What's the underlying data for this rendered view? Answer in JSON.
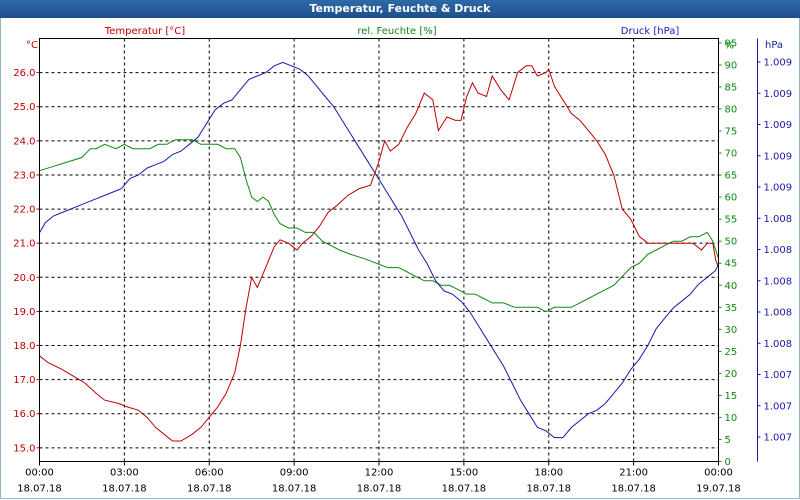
{
  "window": {
    "title": "Temperatur, Feuchte & Druck"
  },
  "chart_data": {
    "type": "line",
    "title": "Temperatur, Feuchte & Druck",
    "x": {
      "ticks": [
        {
          "time": "00:00",
          "date": "18.07.18"
        },
        {
          "time": "03:00",
          "date": "18.07.18"
        },
        {
          "time": "06:00",
          "date": "18.07.18"
        },
        {
          "time": "09:00",
          "date": "18.07.18"
        },
        {
          "time": "12:00",
          "date": "18.07.18"
        },
        {
          "time": "15:00",
          "date": "18.07.18"
        },
        {
          "time": "18:00",
          "date": "18.07.18"
        },
        {
          "time": "21:00",
          "date": "18.07.18"
        },
        {
          "time": "00:00",
          "date": "19.07.18"
        }
      ],
      "range_hours": [
        0,
        24
      ]
    },
    "axes": {
      "temperature": {
        "label": "Temperatur [°C]",
        "unit": "°C",
        "color": "#c00000",
        "range": [
          14.6,
          27.0
        ],
        "ticks": [
          "15.0",
          "16.0",
          "17.0",
          "18.0",
          "19.0",
          "20.0",
          "21.0",
          "22.0",
          "23.0",
          "24.0",
          "25.0",
          "26.0"
        ]
      },
      "humidity": {
        "label": "rel. Feuchte [%]",
        "unit": "%",
        "color": "#118811",
        "range": [
          0,
          96
        ],
        "ticks": [
          "0",
          "5",
          "10",
          "15",
          "20",
          "25",
          "30",
          "35",
          "40",
          "45",
          "50",
          "55",
          "60",
          "65",
          "70",
          "75",
          "80",
          "85",
          "90",
          "95",
          "%"
        ]
      },
      "pressure": {
        "label": "Druck [hPa]",
        "unit": "hPa",
        "color": "#1a1aaa",
        "ticks": [
          "1.007",
          "1.007",
          "1.007",
          "1.008",
          "1.008",
          "1.008",
          "1.008",
          "1.008",
          "1.009",
          "1.009",
          "1.009",
          "1.009",
          "1.009"
        ]
      }
    },
    "series": [
      {
        "name": "Temperatur [°C]",
        "color": "#c00000",
        "axis": "temperature",
        "points": [
          [
            0,
            17.7
          ],
          [
            0.3,
            17.5
          ],
          [
            0.8,
            17.3
          ],
          [
            1.2,
            17.1
          ],
          [
            1.6,
            16.9
          ],
          [
            2.0,
            16.6
          ],
          [
            2.3,
            16.4
          ],
          [
            2.8,
            16.3
          ],
          [
            3.1,
            16.2
          ],
          [
            3.5,
            16.1
          ],
          [
            3.8,
            15.9
          ],
          [
            4.1,
            15.6
          ],
          [
            4.4,
            15.4
          ],
          [
            4.7,
            15.2
          ],
          [
            5.0,
            15.2
          ],
          [
            5.4,
            15.4
          ],
          [
            5.7,
            15.6
          ],
          [
            6.0,
            15.9
          ],
          [
            6.3,
            16.2
          ],
          [
            6.6,
            16.6
          ],
          [
            6.9,
            17.2
          ],
          [
            7.1,
            18.0
          ],
          [
            7.3,
            19.1
          ],
          [
            7.5,
            20.0
          ],
          [
            7.7,
            19.7
          ],
          [
            7.9,
            20.1
          ],
          [
            8.1,
            20.5
          ],
          [
            8.3,
            20.9
          ],
          [
            8.5,
            21.1
          ],
          [
            8.8,
            21.0
          ],
          [
            9.1,
            20.8
          ],
          [
            9.3,
            21.0
          ],
          [
            9.6,
            21.2
          ],
          [
            9.9,
            21.5
          ],
          [
            10.2,
            21.9
          ],
          [
            10.5,
            22.1
          ],
          [
            10.9,
            22.4
          ],
          [
            11.3,
            22.6
          ],
          [
            11.7,
            22.7
          ],
          [
            12.0,
            23.4
          ],
          [
            12.2,
            24.0
          ],
          [
            12.4,
            23.7
          ],
          [
            12.7,
            23.9
          ],
          [
            13.0,
            24.4
          ],
          [
            13.3,
            24.8
          ],
          [
            13.6,
            25.4
          ],
          [
            13.9,
            25.2
          ],
          [
            14.1,
            24.3
          ],
          [
            14.4,
            24.7
          ],
          [
            14.7,
            24.6
          ],
          [
            14.9,
            24.6
          ],
          [
            15.1,
            25.3
          ],
          [
            15.3,
            25.7
          ],
          [
            15.5,
            25.4
          ],
          [
            15.8,
            25.3
          ],
          [
            16.0,
            25.9
          ],
          [
            16.3,
            25.5
          ],
          [
            16.6,
            25.2
          ],
          [
            16.9,
            26.0
          ],
          [
            17.2,
            26.2
          ],
          [
            17.4,
            26.2
          ],
          [
            17.6,
            25.9
          ],
          [
            17.9,
            26.0
          ],
          [
            18.0,
            26.1
          ],
          [
            18.2,
            25.6
          ],
          [
            18.5,
            25.2
          ],
          [
            18.8,
            24.8
          ],
          [
            19.1,
            24.6
          ],
          [
            19.4,
            24.3
          ],
          [
            19.7,
            24.0
          ],
          [
            20.0,
            23.6
          ],
          [
            20.3,
            23.0
          ],
          [
            20.6,
            22.0
          ],
          [
            20.9,
            21.7
          ],
          [
            21.2,
            21.2
          ],
          [
            21.5,
            21.0
          ],
          [
            21.9,
            21.0
          ],
          [
            22.3,
            21.0
          ],
          [
            22.7,
            21.0
          ],
          [
            23.1,
            21.0
          ],
          [
            23.4,
            20.8
          ],
          [
            23.6,
            21.0
          ],
          [
            23.8,
            21.0
          ],
          [
            23.9,
            20.5
          ],
          [
            24.0,
            20.3
          ]
        ]
      },
      {
        "name": "rel. Feuchte [%]",
        "color": "#118811",
        "axis": "humidity",
        "points": [
          [
            0,
            66
          ],
          [
            0.5,
            67
          ],
          [
            1.0,
            68
          ],
          [
            1.5,
            69
          ],
          [
            1.8,
            71
          ],
          [
            2.0,
            71
          ],
          [
            2.3,
            72
          ],
          [
            2.7,
            71
          ],
          [
            3.0,
            72
          ],
          [
            3.3,
            71
          ],
          [
            3.6,
            71
          ],
          [
            3.9,
            71
          ],
          [
            4.2,
            72
          ],
          [
            4.5,
            72
          ],
          [
            4.8,
            73
          ],
          [
            5.1,
            73
          ],
          [
            5.4,
            73
          ],
          [
            5.7,
            72
          ],
          [
            6.0,
            72
          ],
          [
            6.3,
            72
          ],
          [
            6.6,
            71
          ],
          [
            6.9,
            71
          ],
          [
            7.1,
            69
          ],
          [
            7.3,
            64
          ],
          [
            7.5,
            60
          ],
          [
            7.7,
            59
          ],
          [
            7.9,
            60
          ],
          [
            8.1,
            59
          ],
          [
            8.3,
            56
          ],
          [
            8.5,
            54
          ],
          [
            8.8,
            53
          ],
          [
            9.1,
            53
          ],
          [
            9.4,
            52
          ],
          [
            9.7,
            52
          ],
          [
            10.0,
            50
          ],
          [
            10.3,
            49
          ],
          [
            10.6,
            48
          ],
          [
            11.0,
            47
          ],
          [
            11.5,
            46
          ],
          [
            11.9,
            45
          ],
          [
            12.3,
            44
          ],
          [
            12.7,
            44
          ],
          [
            13.0,
            43
          ],
          [
            13.3,
            42
          ],
          [
            13.6,
            41
          ],
          [
            13.9,
            41
          ],
          [
            14.2,
            40
          ],
          [
            14.5,
            40
          ],
          [
            14.8,
            39
          ],
          [
            15.1,
            38
          ],
          [
            15.4,
            38
          ],
          [
            15.7,
            37
          ],
          [
            16.0,
            36
          ],
          [
            16.4,
            36
          ],
          [
            16.8,
            35
          ],
          [
            17.2,
            35
          ],
          [
            17.6,
            35
          ],
          [
            17.9,
            34
          ],
          [
            18.2,
            35
          ],
          [
            18.5,
            35
          ],
          [
            18.8,
            35
          ],
          [
            19.1,
            36
          ],
          [
            19.4,
            37
          ],
          [
            19.7,
            38
          ],
          [
            20.0,
            39
          ],
          [
            20.3,
            40
          ],
          [
            20.6,
            42
          ],
          [
            20.9,
            44
          ],
          [
            21.2,
            45
          ],
          [
            21.5,
            47
          ],
          [
            21.8,
            48
          ],
          [
            22.1,
            49
          ],
          [
            22.4,
            50
          ],
          [
            22.7,
            50
          ],
          [
            23.0,
            51
          ],
          [
            23.3,
            51
          ],
          [
            23.6,
            52
          ],
          [
            23.8,
            50
          ],
          [
            23.9,
            48
          ],
          [
            24.0,
            46
          ]
        ]
      },
      {
        "name": "Druck [hPa]",
        "color": "#1a1aaa",
        "axis": "pressure",
        "points": [
          [
            0,
            21.3
          ],
          [
            0.2,
            21.6
          ],
          [
            0.5,
            21.8
          ],
          [
            0.8,
            21.9
          ],
          [
            1.1,
            22.0
          ],
          [
            1.4,
            22.1
          ],
          [
            1.7,
            22.2
          ],
          [
            2.0,
            22.3
          ],
          [
            2.3,
            22.4
          ],
          [
            2.6,
            22.5
          ],
          [
            2.9,
            22.6
          ],
          [
            3.2,
            22.9
          ],
          [
            3.5,
            23.0
          ],
          [
            3.8,
            23.2
          ],
          [
            4.1,
            23.3
          ],
          [
            4.4,
            23.4
          ],
          [
            4.7,
            23.6
          ],
          [
            5.0,
            23.7
          ],
          [
            5.3,
            23.9
          ],
          [
            5.6,
            24.1
          ],
          [
            5.9,
            24.5
          ],
          [
            6.2,
            24.9
          ],
          [
            6.5,
            25.1
          ],
          [
            6.8,
            25.2
          ],
          [
            7.1,
            25.5
          ],
          [
            7.4,
            25.8
          ],
          [
            7.7,
            25.9
          ],
          [
            8.0,
            26.0
          ],
          [
            8.3,
            26.2
          ],
          [
            8.6,
            26.3
          ],
          [
            8.9,
            26.2
          ],
          [
            9.2,
            26.1
          ],
          [
            9.5,
            25.9
          ],
          [
            9.8,
            25.6
          ],
          [
            10.1,
            25.3
          ],
          [
            10.4,
            25.0
          ],
          [
            10.7,
            24.6
          ],
          [
            11.0,
            24.2
          ],
          [
            11.3,
            23.8
          ],
          [
            11.6,
            23.4
          ],
          [
            11.9,
            23.0
          ],
          [
            12.2,
            22.6
          ],
          [
            12.5,
            22.2
          ],
          [
            12.8,
            21.8
          ],
          [
            13.1,
            21.3
          ],
          [
            13.4,
            20.8
          ],
          [
            13.7,
            20.4
          ],
          [
            14.0,
            19.9
          ],
          [
            14.3,
            19.6
          ],
          [
            14.6,
            19.5
          ],
          [
            14.9,
            19.3
          ],
          [
            15.2,
            19.0
          ],
          [
            15.5,
            18.6
          ],
          [
            15.8,
            18.2
          ],
          [
            16.1,
            17.8
          ],
          [
            16.4,
            17.4
          ],
          [
            16.7,
            16.9
          ],
          [
            17.0,
            16.4
          ],
          [
            17.3,
            16.0
          ],
          [
            17.6,
            15.6
          ],
          [
            17.9,
            15.5
          ],
          [
            18.2,
            15.3
          ],
          [
            18.5,
            15.3
          ],
          [
            18.8,
            15.6
          ],
          [
            19.1,
            15.8
          ],
          [
            19.4,
            16.0
          ],
          [
            19.7,
            16.1
          ],
          [
            20.0,
            16.3
          ],
          [
            20.3,
            16.6
          ],
          [
            20.6,
            16.9
          ],
          [
            20.9,
            17.3
          ],
          [
            21.2,
            17.6
          ],
          [
            21.5,
            18.0
          ],
          [
            21.8,
            18.5
          ],
          [
            22.1,
            18.8
          ],
          [
            22.4,
            19.1
          ],
          [
            22.7,
            19.3
          ],
          [
            23.0,
            19.5
          ],
          [
            23.3,
            19.8
          ],
          [
            23.6,
            20.0
          ],
          [
            23.9,
            20.2
          ],
          [
            24.0,
            20.4
          ]
        ]
      }
    ],
    "grid": true,
    "grid_style": "dashed"
  }
}
